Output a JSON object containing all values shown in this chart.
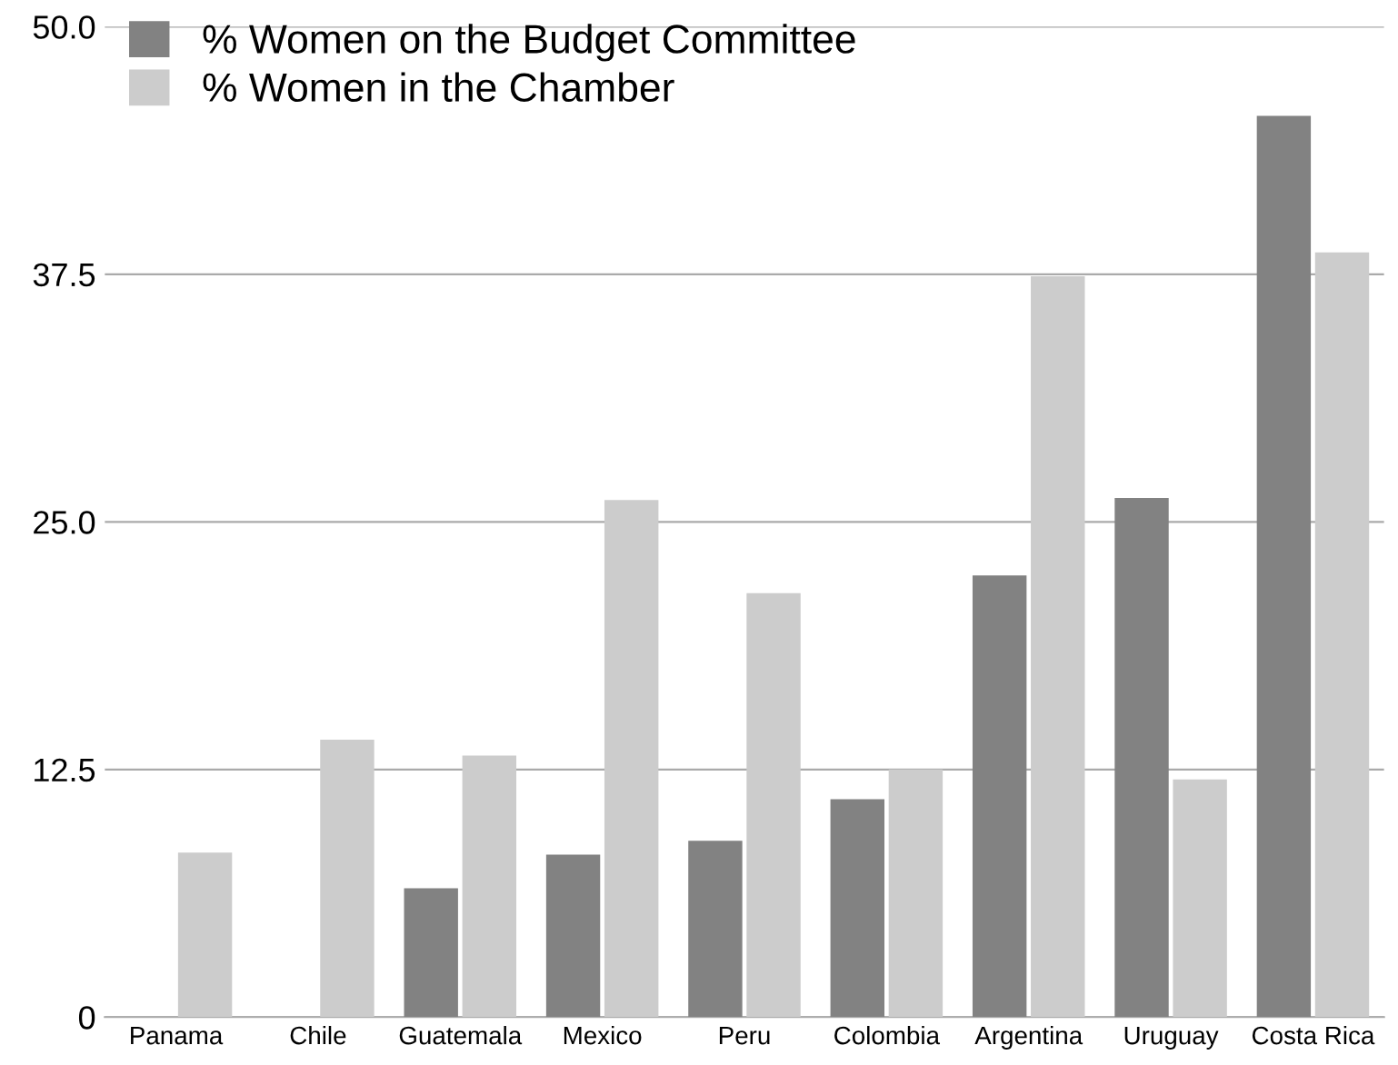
{
  "chart_data": {
    "type": "bar",
    "categories": [
      "Panama",
      "Chile",
      "Guatemala",
      "Mexico",
      "Peru",
      "Colombia",
      "Argentina",
      "Uruguay",
      "Costa Rica"
    ],
    "series": [
      {
        "name": "% Women on the Budget Committee",
        "color": "#828282",
        "values": [
          0,
          0,
          6.5,
          8.2,
          8.9,
          11.0,
          22.3,
          26.2,
          45.5
        ]
      },
      {
        "name": "% Women in the Chamber",
        "color": "#cccccc",
        "values": [
          8.3,
          14.0,
          13.2,
          26.1,
          21.4,
          12.5,
          37.4,
          12.0,
          38.6
        ]
      }
    ],
    "ylim": [
      0,
      50
    ],
    "yticks": [
      0,
      {
        "value": 12.5,
        "label": "12.5"
      },
      {
        "value": 25,
        "label": "25.0"
      },
      {
        "value": 37.5,
        "label": "37.5"
      },
      {
        "value": 50,
        "label": "50.0"
      }
    ],
    "grid": "y",
    "legend": "top left"
  }
}
